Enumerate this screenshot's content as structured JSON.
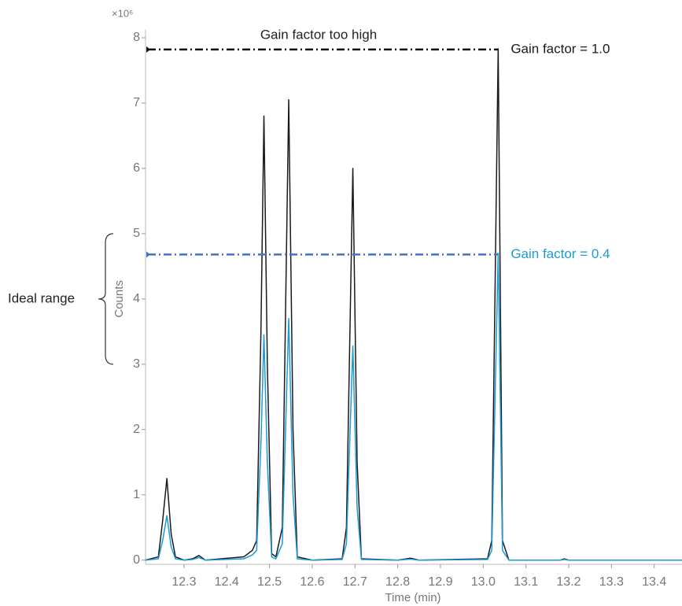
{
  "chart_data": {
    "type": "line",
    "y_axis_label": "Counts",
    "x_axis_label": "Time (min)",
    "y_axis_multiplier": "×10⁶",
    "annotation": "Gain factor too high",
    "ideal_range": {
      "label": "Ideal range",
      "range": [
        3,
        5
      ]
    },
    "x": [
      12.21,
      12.24,
      12.25,
      12.26,
      12.27,
      12.28,
      12.3,
      12.32,
      12.335,
      12.35,
      12.44,
      12.46,
      12.47,
      12.48,
      12.487,
      12.495,
      12.505,
      12.515,
      12.53,
      12.545,
      12.555,
      12.565,
      12.6,
      12.67,
      12.68,
      12.695,
      12.705,
      12.715,
      12.8,
      12.83,
      12.85,
      13.01,
      13.02,
      13.035,
      13.045,
      13.06,
      13.18,
      13.19,
      13.2,
      13.465
    ],
    "series": [
      {
        "name": "Gain factor = 1.0",
        "color": "#1a1a1a",
        "line_color": "#111111",
        "reference": 7.82,
        "values": [
          0,
          0.05,
          0.6,
          1.25,
          0.4,
          0.05,
          0,
          0.02,
          0.07,
          0,
          0.05,
          0.15,
          0.3,
          3.5,
          6.8,
          3.0,
          0.1,
          0.05,
          0.5,
          7.05,
          2.0,
          0.05,
          0,
          0.02,
          0.5,
          6.0,
          1.5,
          0.02,
          0,
          0.03,
          0,
          0.02,
          0.3,
          7.83,
          0.3,
          0,
          0,
          0.02,
          0,
          0
        ]
      },
      {
        "name": "Gain factor = 0.4",
        "color": "#1a9ad6",
        "line_color": "#4472c4",
        "reference": 4.68,
        "values": [
          0,
          0.02,
          0.3,
          0.68,
          0.2,
          0.02,
          0,
          0.01,
          0.04,
          0,
          0.02,
          0.08,
          0.15,
          1.8,
          3.45,
          1.5,
          0.05,
          0.02,
          0.25,
          3.7,
          1.0,
          0.02,
          0,
          0.01,
          0.25,
          3.28,
          0.8,
          0.01,
          0,
          0.015,
          0,
          0.01,
          0.15,
          4.7,
          0.15,
          0,
          0,
          0.01,
          0,
          0
        ]
      }
    ],
    "xlim": [
      12.21,
      13.465
    ],
    "xticks": [
      12.3,
      12.4,
      12.5,
      12.6,
      12.7,
      12.8,
      12.9,
      {
        "value": 13.0,
        "label": "13.0"
      },
      13.1,
      13.2,
      13.3,
      13.4
    ],
    "ylim": [
      -0.1,
      8.1
    ],
    "yticks": [
      0,
      1,
      2,
      3,
      4,
      5,
      6,
      7,
      8
    ],
    "grid": false
  }
}
